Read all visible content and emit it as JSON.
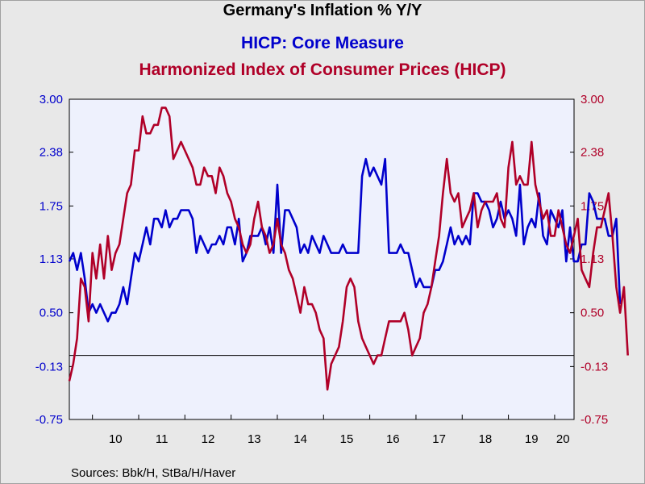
{
  "chart_data": {
    "type": "line",
    "title": "Germany's Inflation % Y/Y",
    "xlabel": "",
    "ylabel": "",
    "ylim": [
      -0.75,
      3.0
    ],
    "yticks": [
      "3.00",
      "2.38",
      "1.75",
      "1.13",
      "0.50",
      "-0.13",
      "-0.75"
    ],
    "xticks": [
      "10",
      "11",
      "12",
      "13",
      "14",
      "15",
      "16",
      "17",
      "18",
      "19",
      "20"
    ],
    "x_start": 2009.5,
    "x_step": 0.0833333,
    "zero_line": 0,
    "legend": "top-center",
    "source": "Sources:  Bbk/H, StBa/H/Haver",
    "series": [
      {
        "name": "HICP: Core Measure",
        "color": "#0000cc",
        "values": [
          1.1,
          1.2,
          1.0,
          1.2,
          0.9,
          0.5,
          0.6,
          0.5,
          0.6,
          0.5,
          0.4,
          0.5,
          0.5,
          0.6,
          0.8,
          0.6,
          0.9,
          1.2,
          1.1,
          1.3,
          1.5,
          1.3,
          1.6,
          1.6,
          1.5,
          1.7,
          1.5,
          1.6,
          1.6,
          1.7,
          1.7,
          1.7,
          1.6,
          1.2,
          1.4,
          1.3,
          1.2,
          1.3,
          1.3,
          1.4,
          1.3,
          1.5,
          1.5,
          1.3,
          1.6,
          1.1,
          1.2,
          1.4,
          1.4,
          1.4,
          1.5,
          1.3,
          1.5,
          1.2,
          2.0,
          1.2,
          1.7,
          1.7,
          1.6,
          1.5,
          1.2,
          1.3,
          1.2,
          1.4,
          1.3,
          1.2,
          1.4,
          1.3,
          1.2,
          1.2,
          1.2,
          1.3,
          1.2,
          1.2,
          1.2,
          1.2,
          2.1,
          2.3,
          2.1,
          2.2,
          2.1,
          2.0,
          2.3,
          1.2,
          1.2,
          1.2,
          1.3,
          1.2,
          1.2,
          1.0,
          0.8,
          0.9,
          0.8,
          0.8,
          0.8,
          1.0,
          1.0,
          1.1,
          1.3,
          1.5,
          1.3,
          1.4,
          1.3,
          1.4,
          1.3,
          1.9,
          1.9,
          1.8,
          1.8,
          1.7,
          1.5,
          1.6,
          1.8,
          1.6,
          1.7,
          1.6,
          1.4,
          2.0,
          1.3,
          1.5,
          1.6,
          1.5,
          1.9,
          1.4,
          1.3,
          1.7,
          1.6,
          1.5,
          1.7,
          1.1,
          1.5,
          1.1,
          1.1,
          1.3,
          1.3,
          1.9,
          1.8,
          1.6,
          1.6,
          1.6,
          1.4,
          1.4,
          1.6,
          0.6
        ]
      },
      {
        "name": "Harmonized Index of Consumer Prices (HICP)",
        "color": "#b00028",
        "values": [
          -0.3,
          -0.1,
          0.2,
          0.9,
          0.8,
          0.4,
          1.2,
          0.9,
          1.3,
          0.9,
          1.4,
          1.0,
          1.2,
          1.3,
          1.6,
          1.9,
          2.0,
          2.4,
          2.4,
          2.8,
          2.6,
          2.6,
          2.7,
          2.7,
          2.9,
          2.9,
          2.8,
          2.3,
          2.4,
          2.5,
          2.4,
          2.3,
          2.2,
          2.0,
          2.0,
          2.2,
          2.1,
          2.1,
          1.9,
          2.2,
          2.1,
          1.9,
          1.8,
          1.6,
          1.5,
          1.3,
          1.2,
          1.3,
          1.6,
          1.8,
          1.5,
          1.4,
          1.2,
          1.3,
          1.6,
          1.3,
          1.2,
          1.0,
          0.9,
          0.7,
          0.5,
          0.8,
          0.6,
          0.6,
          0.5,
          0.3,
          0.2,
          -0.4,
          -0.1,
          0.0,
          0.1,
          0.4,
          0.8,
          0.9,
          0.8,
          0.4,
          0.2,
          0.1,
          0.0,
          -0.1,
          0.0,
          0.0,
          0.2,
          0.4,
          0.4,
          0.4,
          0.4,
          0.5,
          0.3,
          0.0,
          0.1,
          0.2,
          0.5,
          0.6,
          0.8,
          1.1,
          1.4,
          1.9,
          2.3,
          1.9,
          1.8,
          1.9,
          1.5,
          1.6,
          1.7,
          1.9,
          1.5,
          1.7,
          1.8,
          1.8,
          1.8,
          1.9,
          1.6,
          1.5,
          2.2,
          2.5,
          2.0,
          2.1,
          2.0,
          2.0,
          2.5,
          2.0,
          1.8,
          1.6,
          1.7,
          1.4,
          1.4,
          1.7,
          1.5,
          1.3,
          1.2,
          1.4,
          1.6,
          1.0,
          0.9,
          0.8,
          1.2,
          1.5,
          1.5,
          1.7,
          1.9,
          1.4,
          0.8,
          0.5,
          0.8,
          0.0
        ]
      }
    ]
  }
}
